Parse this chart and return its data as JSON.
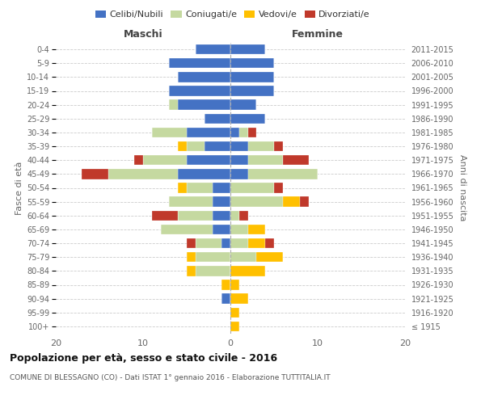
{
  "age_groups": [
    "100+",
    "95-99",
    "90-94",
    "85-89",
    "80-84",
    "75-79",
    "70-74",
    "65-69",
    "60-64",
    "55-59",
    "50-54",
    "45-49",
    "40-44",
    "35-39",
    "30-34",
    "25-29",
    "20-24",
    "15-19",
    "10-14",
    "5-9",
    "0-4"
  ],
  "birth_years": [
    "≤ 1915",
    "1916-1920",
    "1921-1925",
    "1926-1930",
    "1931-1935",
    "1936-1940",
    "1941-1945",
    "1946-1950",
    "1951-1955",
    "1956-1960",
    "1961-1965",
    "1966-1970",
    "1971-1975",
    "1976-1980",
    "1981-1985",
    "1986-1990",
    "1991-1995",
    "1996-2000",
    "2001-2005",
    "2006-2010",
    "2011-2015"
  ],
  "colors": {
    "celibi": "#4472c4",
    "coniugati": "#c5d9a0",
    "vedovi": "#ffc000",
    "divorziati": "#c0392b"
  },
  "maschi": {
    "celibi": [
      0,
      0,
      1,
      0,
      0,
      0,
      1,
      2,
      2,
      2,
      2,
      6,
      5,
      3,
      5,
      3,
      6,
      7,
      6,
      7,
      4
    ],
    "coniugati": [
      0,
      0,
      0,
      0,
      4,
      4,
      3,
      6,
      4,
      5,
      3,
      8,
      5,
      2,
      4,
      0,
      1,
      0,
      0,
      0,
      0
    ],
    "vedovi": [
      0,
      0,
      0,
      1,
      1,
      1,
      0,
      0,
      0,
      0,
      1,
      0,
      0,
      1,
      0,
      0,
      0,
      0,
      0,
      0,
      0
    ],
    "divorziati": [
      0,
      0,
      0,
      0,
      0,
      0,
      1,
      0,
      3,
      0,
      0,
      3,
      1,
      0,
      0,
      0,
      0,
      0,
      0,
      0,
      0
    ]
  },
  "femmine": {
    "celibi": [
      0,
      0,
      0,
      0,
      0,
      0,
      0,
      0,
      0,
      0,
      0,
      2,
      2,
      2,
      1,
      4,
      3,
      5,
      5,
      5,
      4
    ],
    "coniugati": [
      0,
      0,
      0,
      0,
      0,
      3,
      2,
      2,
      1,
      6,
      5,
      8,
      4,
      3,
      1,
      0,
      0,
      0,
      0,
      0,
      0
    ],
    "vedovi": [
      1,
      1,
      2,
      1,
      4,
      3,
      2,
      2,
      0,
      2,
      0,
      0,
      0,
      0,
      0,
      0,
      0,
      0,
      0,
      0,
      0
    ],
    "divorziati": [
      0,
      0,
      0,
      0,
      0,
      0,
      1,
      0,
      1,
      1,
      1,
      0,
      3,
      1,
      1,
      0,
      0,
      0,
      0,
      0,
      0
    ]
  },
  "xlim": 20,
  "title": "Popolazione per età, sesso e stato civile - 2016",
  "subtitle": "COMUNE DI BLESSAGNO (CO) - Dati ISTAT 1° gennaio 2016 - Elaborazione TUTTITALIA.IT",
  "ylabel_left": "Fasce di età",
  "ylabel_right": "Anni di nascita",
  "legend_labels": [
    "Celibi/Nubili",
    "Coniugati/e",
    "Vedovi/e",
    "Divorziati/e"
  ]
}
